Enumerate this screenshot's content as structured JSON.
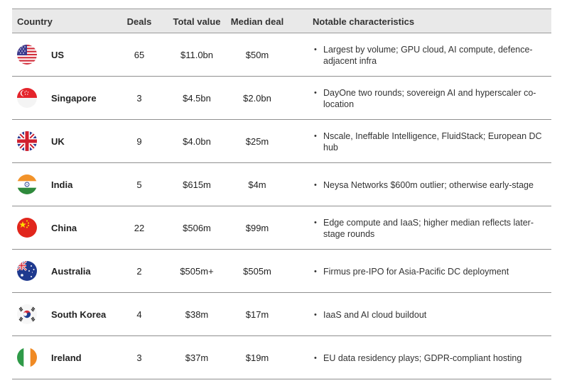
{
  "headers": {
    "country": "Country",
    "deals": "Deals",
    "total": "Total value",
    "median": "Median deal",
    "notes": "Notable characteristics"
  },
  "rows": [
    {
      "country": "US",
      "flag": "us-flag-icon",
      "deals": "65",
      "total": "$11.0bn",
      "median": "$50m",
      "notes": "Largest by volume; GPU cloud, AI compute, defence-adjacent infra"
    },
    {
      "country": "Singapore",
      "flag": "singapore-flag-icon",
      "deals": "3",
      "total": "$4.5bn",
      "median": "$2.0bn",
      "notes": "DayOne two rounds; sovereign AI and hyperscaler co-location"
    },
    {
      "country": "UK",
      "flag": "uk-flag-icon",
      "deals": "9",
      "total": "$4.0bn",
      "median": "$25m",
      "notes": "Nscale, Ineffable Intelligence, FluidStack; European DC hub"
    },
    {
      "country": "India",
      "flag": "india-flag-icon",
      "deals": "5",
      "total": "$615m",
      "median": "$4m",
      "notes": "Neysa Networks $600m outlier; otherwise early-stage"
    },
    {
      "country": "China",
      "flag": "china-flag-icon",
      "deals": "22",
      "total": "$506m",
      "median": "$99m",
      "notes": "Edge compute and IaaS; higher median reflects later-stage rounds"
    },
    {
      "country": "Australia",
      "flag": "australia-flag-icon",
      "deals": "2",
      "total": "$505m+",
      "median": "$505m",
      "notes": "Firmus pre-IPO for Asia-Pacific DC deployment"
    },
    {
      "country": "South Korea",
      "flag": "south-korea-flag-icon",
      "deals": "4",
      "total": "$38m",
      "median": "$17m",
      "notes": "IaaS and AI cloud buildout"
    },
    {
      "country": "Ireland",
      "flag": "ireland-flag-icon",
      "deals": "3",
      "total": "$37m",
      "median": "$19m",
      "notes": "EU data residency plays; GDPR-compliant hosting"
    }
  ]
}
